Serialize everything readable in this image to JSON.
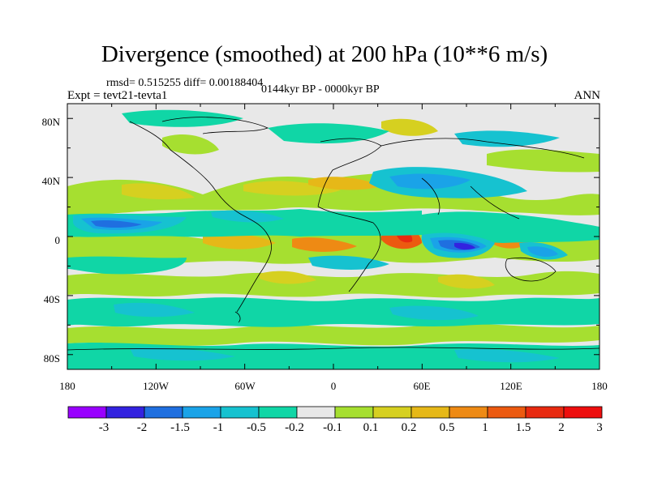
{
  "figure": {
    "title": "Divergence (smoothed) at 200 hPa (10**6 m/s)",
    "stats_line": "rmsd= 0.515255 diff= 0.00188404",
    "experiment": "Expt = tevt21-tevta1",
    "period": "0144kyr BP - 0000kyr BP",
    "season": "ANN"
  },
  "map": {
    "lon_tick_labels": [
      "180",
      "120W",
      "60W",
      "0",
      "60E",
      "120E",
      "180"
    ],
    "lat_tick_labels": [
      "80N",
      "40N",
      "0",
      "40S",
      "80S"
    ],
    "background_color": "#e8e8e8"
  },
  "colorbar": {
    "colors": [
      "#9900ff",
      "#3322e0",
      "#1f6fe0",
      "#1aa3e8",
      "#16c2d0",
      "#10d6a6",
      "#e8e8e8",
      "#a6df30",
      "#d6d020",
      "#e6b818",
      "#ee8a14",
      "#ec5a10",
      "#e82a10",
      "#ee0e0e"
    ],
    "labels": [
      "-3",
      "-2",
      "-1.5",
      "-1",
      "-0.5",
      "-0.2",
      "-0.1",
      "0.1",
      "0.2",
      "0.5",
      "1",
      "1.5",
      "2",
      "3"
    ]
  }
}
